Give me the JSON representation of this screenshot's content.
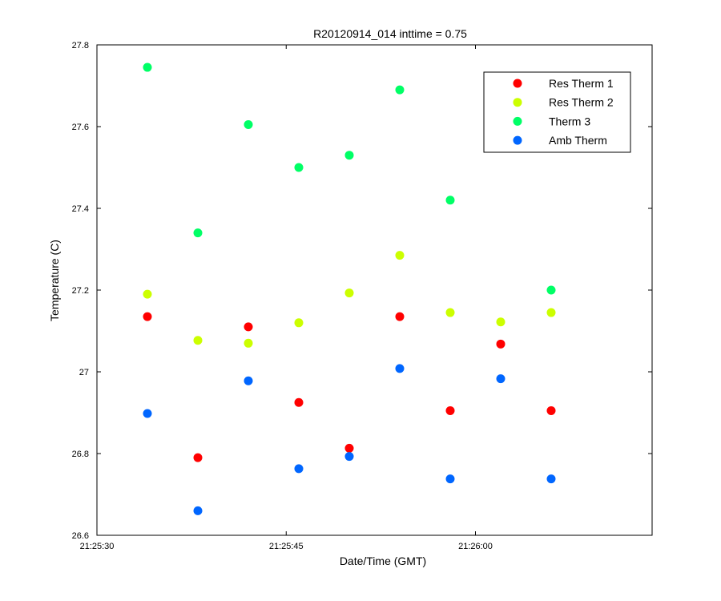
{
  "chart_data": {
    "type": "scatter",
    "title": "R20120914_014 inttime = 0.75",
    "xlabel": "Date/Time (GMT)",
    "ylabel": "Temperature (C)",
    "xlim": [
      "21:25:30",
      "21:26:14"
    ],
    "ylim": [
      26.6,
      27.8
    ],
    "x_ticks": [
      "21:25:30",
      "21:25:45",
      "21:26:00"
    ],
    "y_ticks": [
      "26.6",
      "26.8",
      "27",
      "27.2",
      "27.4",
      "27.6",
      "27.8"
    ],
    "grid": false,
    "legend_position": "top-right",
    "x": [
      "21:25:34",
      "21:25:38",
      "21:25:42",
      "21:25:46",
      "21:25:50",
      "21:25:54",
      "21:25:58",
      "21:26:02",
      "21:26:06"
    ],
    "series": [
      {
        "name": "Res Therm 1",
        "color": "#ff0000",
        "values": [
          27.135,
          26.79,
          27.11,
          26.925,
          26.813,
          27.135,
          26.905,
          27.068,
          26.905
        ]
      },
      {
        "name": "Res Therm 2",
        "color": "#ccff00",
        "values": [
          27.19,
          27.077,
          27.07,
          27.12,
          27.193,
          27.285,
          27.145,
          27.122,
          27.145
        ]
      },
      {
        "name": "Therm 3",
        "color": "#00ff66",
        "values": [
          27.745,
          27.34,
          27.605,
          27.5,
          27.53,
          27.69,
          27.42,
          null,
          27.2
        ]
      },
      {
        "name": "Amb Therm",
        "color": "#0066ff",
        "values": [
          26.898,
          26.66,
          26.978,
          26.763,
          26.793,
          27.008,
          26.738,
          26.983,
          26.738
        ]
      }
    ]
  }
}
